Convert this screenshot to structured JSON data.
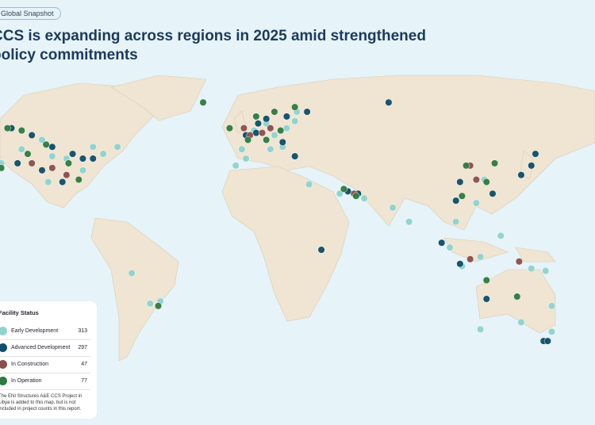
{
  "header": {
    "tag": "Global Snapshot",
    "title_lines": [
      "CCS is expanding across regions in 2025 amid strengthened",
      "policy commitments"
    ]
  },
  "legend": {
    "title": "Facility Status",
    "statuses": [
      {
        "name": "Early Development",
        "count": 313,
        "color": "#8fd3cf",
        "points": [
          [
            -123,
            49
          ],
          [
            -110,
            44
          ],
          [
            -95,
            41
          ],
          [
            -100,
            48
          ],
          [
            -88,
            40
          ],
          [
            -75,
            45
          ],
          [
            -120,
            38
          ],
          [
            -97,
            30
          ],
          [
            -70,
            42
          ],
          [
            -80,
            35
          ],
          [
            -63,
            45
          ],
          [
            4,
            52
          ],
          [
            10,
            55
          ],
          [
            14,
            50
          ],
          [
            20,
            53
          ],
          [
            25,
            60
          ],
          [
            -2,
            44
          ],
          [
            12,
            44
          ],
          [
            0,
            40
          ],
          [
            18,
            45
          ],
          [
            -5,
            37
          ],
          [
            24,
            56
          ],
          [
            31,
            29
          ],
          [
            46,
            25
          ],
          [
            58,
            23
          ],
          [
            72,
            19
          ],
          [
            80,
            13
          ],
          [
            103,
            13
          ],
          [
            113,
            21
          ],
          [
            117,
            31
          ],
          [
            100,
            2
          ],
          [
            106,
            -6
          ],
          [
            115,
            -2
          ],
          [
            125,
            7
          ],
          [
            140,
            -7
          ],
          [
            147,
            -8
          ],
          [
            115,
            -33
          ],
          [
            135,
            -30
          ],
          [
            150,
            -23
          ],
          [
            150,
            -34
          ],
          [
            -47,
            -22
          ],
          [
            -42,
            -21
          ],
          [
            -56,
            -9
          ]
        ]
      },
      {
        "name": "Advanced Development",
        "count": 297,
        "color": "#0e4e68",
        "points": [
          [
            -115,
            53
          ],
          [
            -105,
            50
          ],
          [
            -95,
            45
          ],
          [
            -85,
            42
          ],
          [
            -90,
            30
          ],
          [
            -80,
            40
          ],
          [
            -100,
            35
          ],
          [
            -112,
            38
          ],
          [
            -75,
            40
          ],
          [
            6,
            55
          ],
          [
            10,
            57
          ],
          [
            20,
            58
          ],
          [
            30,
            60
          ],
          [
            0,
            50
          ],
          [
            5,
            51
          ],
          [
            18,
            47
          ],
          [
            24,
            41
          ],
          [
            50,
            26
          ],
          [
            55,
            25
          ],
          [
            37,
            1
          ],
          [
            105,
            30
          ],
          [
            121,
            25
          ],
          [
            103,
            22
          ],
          [
            96,
            4
          ],
          [
            105,
            -5
          ],
          [
            135,
            33
          ],
          [
            140,
            37
          ],
          [
            142,
            42
          ],
          [
            118,
            -20
          ],
          [
            146,
            -38
          ],
          [
            148,
            -38
          ],
          [
            70,
            64
          ]
        ]
      },
      {
        "name": "In Construction",
        "count": 47,
        "color": "#8b4e4d",
        "points": [
          [
            -105,
            38
          ],
          [
            -95,
            36
          ],
          [
            -88,
            33
          ],
          [
            2,
            50
          ],
          [
            8,
            51
          ],
          [
            12,
            53
          ],
          [
            -1,
            53
          ],
          [
            110,
            37
          ],
          [
            113,
            31
          ],
          [
            110,
            -3
          ],
          [
            134,
            -4
          ],
          [
            53,
            25
          ]
        ]
      },
      {
        "name": "In Operation",
        "count": 77,
        "color": "#2f7a3f",
        "points": [
          [
            -110,
            52
          ],
          [
            -98,
            46
          ],
          [
            -87,
            38
          ],
          [
            -107,
            42
          ],
          [
            -82,
            31
          ],
          [
            -120,
            36
          ],
          [
            5,
            58
          ],
          [
            14,
            60
          ],
          [
            24,
            62
          ],
          [
            10,
            48
          ],
          [
            -8,
            53
          ],
          [
            1,
            48
          ],
          [
            17,
            52
          ],
          [
            54,
            24
          ],
          [
            -43,
            -23
          ],
          [
            -117,
            53
          ],
          [
            108,
            37
          ],
          [
            122,
            38
          ],
          [
            118,
            30
          ],
          [
            106,
            24
          ],
          [
            48,
            27
          ],
          [
            -21,
            64
          ],
          [
            133,
            -19
          ],
          [
            118,
            -12
          ]
        ]
      }
    ],
    "footnote": "The ENI Structures A&E CCS Project in Libya is added to this map, but is not included in project counts in this report."
  }
}
